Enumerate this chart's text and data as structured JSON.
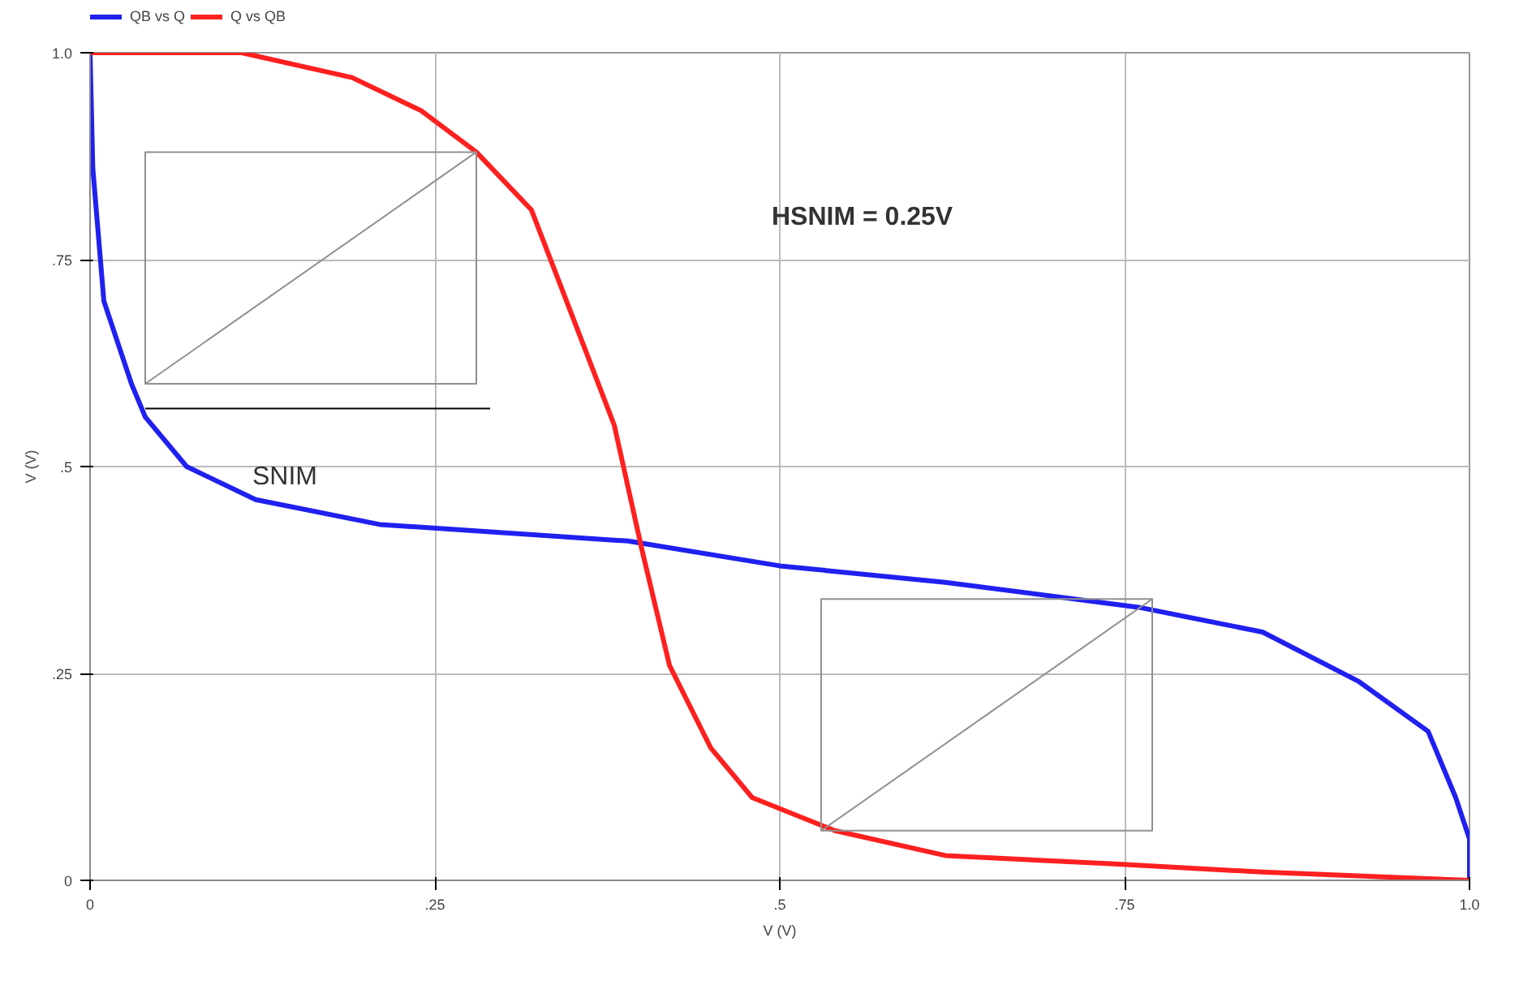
{
  "chart_data": {
    "type": "line",
    "xlabel": "V (V)",
    "ylabel": "V (V)",
    "xlim": [
      0,
      1.0
    ],
    "ylim": [
      0,
      1.0
    ],
    "xticks": [
      0,
      {
        "value": 0.25,
        "label": ".25"
      },
      {
        "value": 0.5,
        "label": ".5"
      },
      {
        "value": 0.75,
        "label": ".75"
      },
      {
        "value": 1.0,
        "label": "1.0"
      }
    ],
    "yticks": [
      0,
      {
        "value": 0.25,
        "label": ".25"
      },
      {
        "value": 0.5,
        "label": ".5"
      },
      {
        "value": 0.75,
        "label": ".75"
      },
      {
        "value": 1.0,
        "label": "1.0"
      }
    ],
    "grid": true,
    "legend": "top left",
    "series": [
      {
        "name": "QB vs Q",
        "color": "#2020f0",
        "x": [
          0,
          0.002,
          0.01,
          0.03,
          0.04,
          0.07,
          0.12,
          0.21,
          0.39,
          0.5,
          0.62,
          0.76,
          0.85,
          0.92,
          0.97,
          0.99,
          1.0,
          1.0
        ],
        "values": [
          1.0,
          0.86,
          0.7,
          0.6,
          0.56,
          0.5,
          0.46,
          0.43,
          0.41,
          0.38,
          0.36,
          0.33,
          0.3,
          0.24,
          0.18,
          0.1,
          0.05,
          0
        ]
      },
      {
        "name": "Q vs QB",
        "color": "#ff2020",
        "x": [
          0,
          0.11,
          0.19,
          0.24,
          0.28,
          0.32,
          0.35,
          0.38,
          0.4,
          0.42,
          0.45,
          0.48,
          0.54,
          0.62,
          0.74,
          0.85,
          1.0
        ],
        "values": [
          1.0,
          1.0,
          0.97,
          0.93,
          0.88,
          0.81,
          0.68,
          0.55,
          0.4,
          0.26,
          0.16,
          0.1,
          0.06,
          0.03,
          0.02,
          0.01,
          0
        ]
      },
      {
        "color": "#909090",
        "x": [
          0.04,
          0.04,
          0.28,
          0.28,
          0.04,
          0.28
        ],
        "values": [
          0.6,
          0.88,
          0.88,
          0.6,
          0.6,
          0.88
        ]
      },
      {
        "color": "#909090",
        "x": [
          0.53,
          0.53,
          0.77,
          0.77,
          0.53,
          0.77
        ],
        "values": [
          0.06,
          0.34,
          0.34,
          0.06,
          0.06,
          0.34
        ]
      },
      {
        "color": "#000000",
        "x": [
          0.04,
          0.29
        ],
        "values": [
          0.57,
          0.57
        ]
      }
    ],
    "annotations": [
      "HSNIM = 0.25V",
      "SNIM"
    ]
  }
}
